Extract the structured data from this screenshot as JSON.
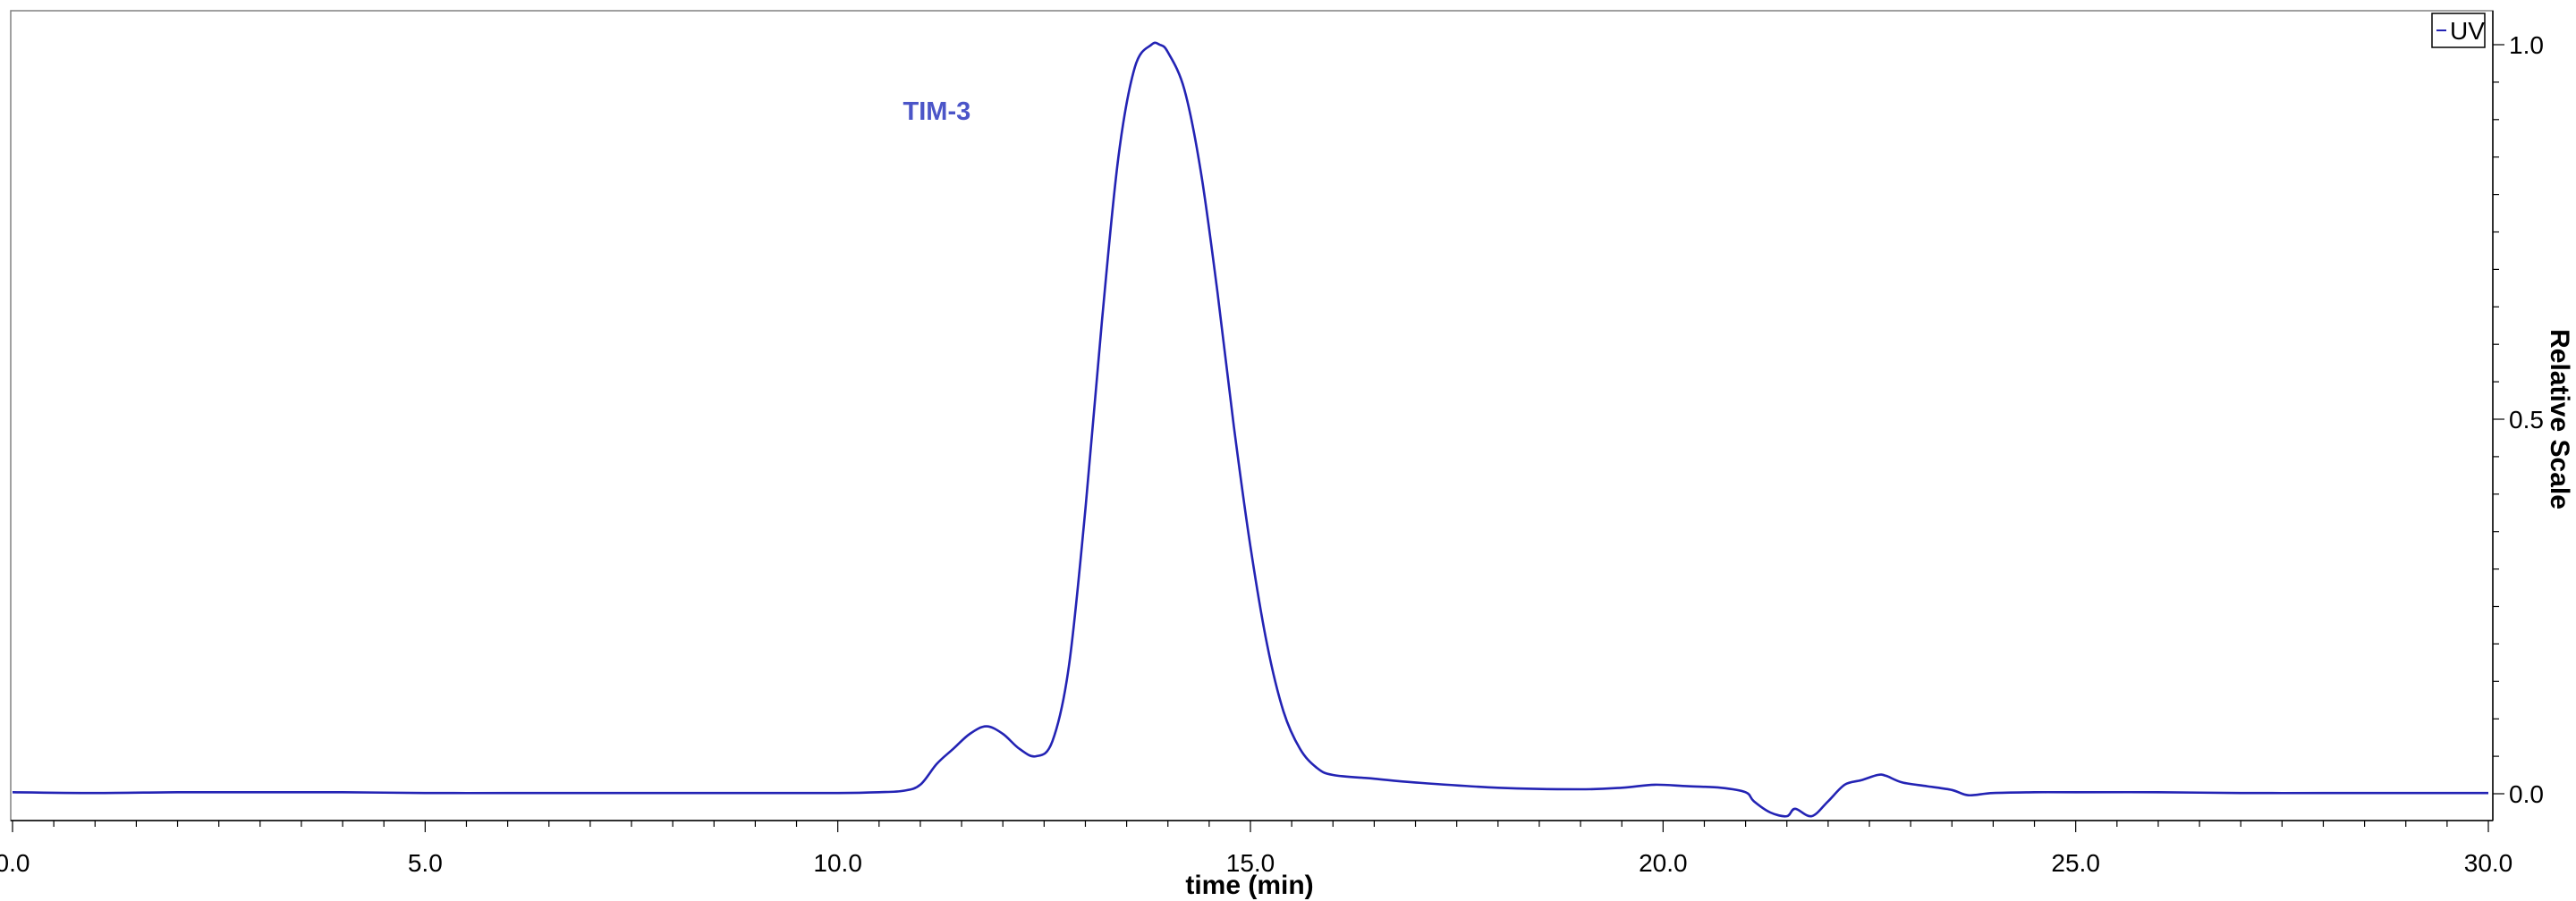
{
  "chart_data": {
    "type": "line",
    "title": "",
    "xlabel": "time (min)",
    "ylabel": "Relative Scale",
    "xlim": [
      0,
      30
    ],
    "ylim": [
      -0.04,
      1.05
    ],
    "x_ticks": [
      "0.0",
      "5.0",
      "10.0",
      "15.0",
      "20.0",
      "25.0",
      "30.0"
    ],
    "y_ticks": [
      "0.0",
      "0.5",
      "1.0"
    ],
    "y_axis_side": "right",
    "grid": false,
    "legend": {
      "entries": [
        "UV"
      ],
      "placement": "top-right"
    },
    "annotations": [
      {
        "text": "TIM-3",
        "x": 11.2,
        "y": 0.9
      }
    ],
    "colors": {
      "line": "#2323b4",
      "annotation": "#4b55c8",
      "axis": "#000000"
    },
    "series": [
      {
        "name": "UV",
        "x": [
          0.0,
          1.0,
          2.0,
          3.0,
          4.0,
          5.0,
          6.0,
          7.0,
          8.0,
          9.0,
          10.0,
          10.5,
          10.8,
          11.0,
          11.2,
          11.4,
          11.6,
          11.8,
          12.0,
          12.2,
          12.4,
          12.6,
          12.8,
          13.0,
          13.2,
          13.4,
          13.6,
          13.8,
          13.9,
          14.0,
          14.2,
          14.4,
          14.6,
          14.8,
          15.0,
          15.2,
          15.4,
          15.6,
          15.8,
          16.0,
          16.5,
          17.0,
          18.0,
          19.0,
          19.5,
          19.9,
          20.3,
          20.7,
          21.0,
          21.1,
          21.3,
          21.5,
          21.6,
          21.8,
          22.0,
          22.2,
          22.4,
          22.6,
          22.7,
          22.9,
          23.2,
          23.5,
          23.7,
          24.0,
          24.5,
          25.0,
          26.0,
          27.0,
          28.0,
          29.0,
          30.0
        ],
        "y": [
          0.002,
          0.001,
          0.002,
          0.002,
          0.002,
          0.001,
          0.001,
          0.001,
          0.001,
          0.001,
          0.001,
          0.002,
          0.004,
          0.012,
          0.04,
          0.06,
          0.08,
          0.09,
          0.08,
          0.06,
          0.05,
          0.07,
          0.17,
          0.38,
          0.63,
          0.85,
          0.97,
          1.0,
          1.0,
          0.99,
          0.94,
          0.83,
          0.67,
          0.49,
          0.33,
          0.2,
          0.11,
          0.06,
          0.035,
          0.025,
          0.02,
          0.015,
          0.008,
          0.006,
          0.008,
          0.012,
          0.01,
          0.008,
          0.002,
          -0.01,
          -0.025,
          -0.03,
          -0.02,
          -0.03,
          -0.01,
          0.012,
          0.018,
          0.025,
          0.024,
          0.015,
          0.01,
          0.005,
          -0.002,
          0.001,
          0.002,
          0.002,
          0.002,
          0.001,
          0.001,
          0.001,
          0.001
        ]
      }
    ]
  }
}
